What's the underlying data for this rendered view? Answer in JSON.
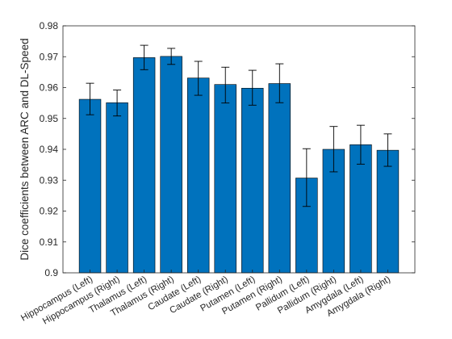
{
  "chart_data": {
    "type": "bar",
    "title": "",
    "xlabel": "",
    "ylabel": "Dice coefficients between ARC and DL-Speed",
    "ylim": [
      0.9,
      0.98
    ],
    "yticks": [
      "0.9",
      "0.91",
      "0.92",
      "0.93",
      "0.94",
      "0.95",
      "0.96",
      "0.97",
      "0.98"
    ],
    "grid": false,
    "bar_color": "#0072BD",
    "categories": [
      "Hippocampus (Left)",
      "Hippocampus (Right)",
      "Thalamus (Left)",
      "Thalamus (Right)",
      "Caudate (Left)",
      "Caudate (Right)",
      "Putamen (Left)",
      "Putamen (Right)",
      "Pallidum (Left)",
      "Pallidum (Right)",
      "Amygdala (Left)",
      "Amygdala (Right)"
    ],
    "values": [
      0.9562,
      0.9551,
      0.9697,
      0.9701,
      0.9631,
      0.961,
      0.9598,
      0.9613,
      0.9307,
      0.94,
      0.9415,
      0.9397
    ],
    "error_low": [
      0.9512,
      0.9508,
      0.9658,
      0.9675,
      0.9575,
      0.955,
      0.9543,
      0.9551,
      0.9215,
      0.9327,
      0.9352,
      0.9345
    ],
    "error_high": [
      0.9614,
      0.9592,
      0.9737,
      0.9727,
      0.9685,
      0.9666,
      0.9656,
      0.9677,
      0.9402,
      0.9474,
      0.9478,
      0.945
    ]
  }
}
